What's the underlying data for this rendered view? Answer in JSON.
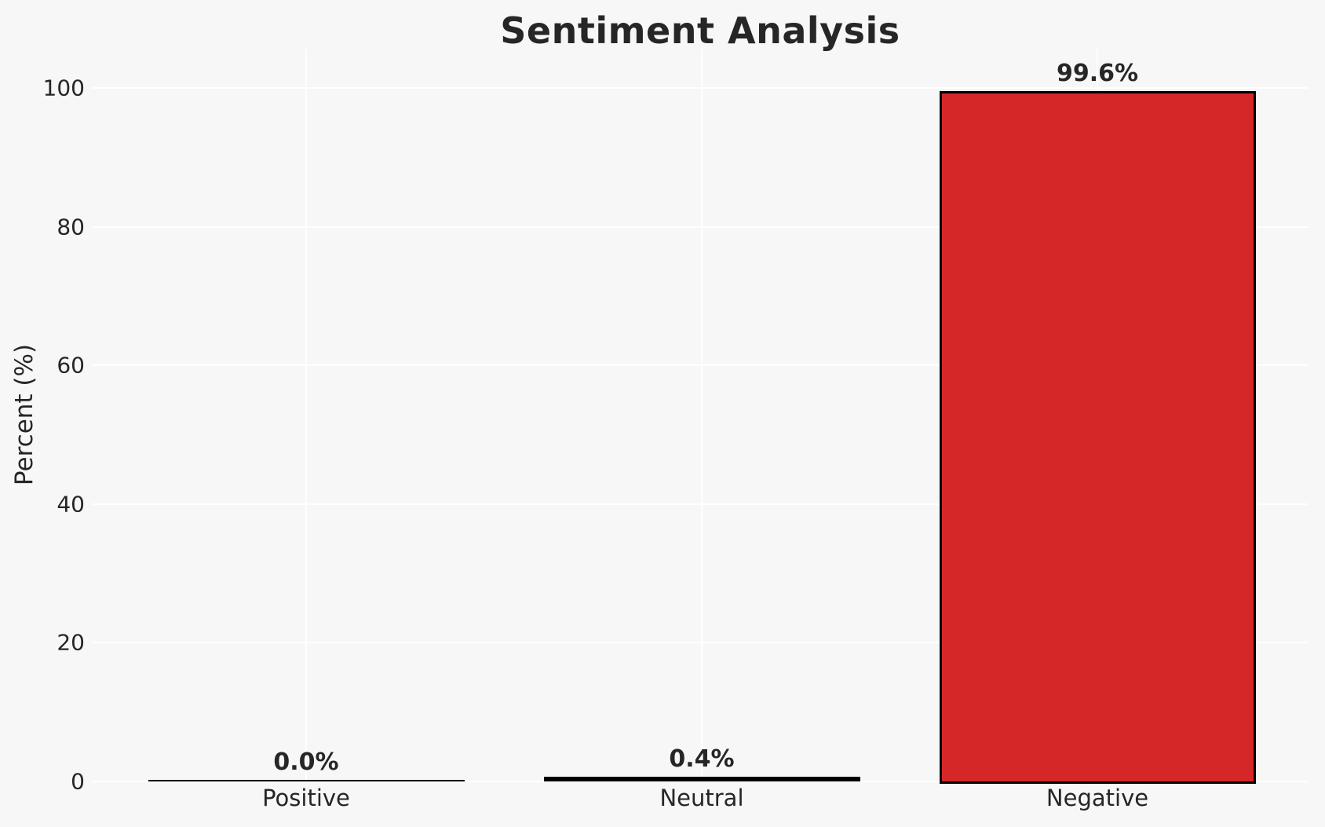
{
  "chart_data": {
    "type": "bar",
    "title": "Sentiment Analysis",
    "ylabel": "Percent (%)",
    "xlabel": "",
    "categories": [
      "Positive",
      "Neutral",
      "Negative"
    ],
    "values": [
      0.0,
      0.4,
      99.6
    ],
    "value_labels": [
      "0.0%",
      "0.4%",
      "99.6%"
    ],
    "yticks": [
      0,
      20,
      40,
      60,
      80,
      100
    ],
    "ytick_labels": [
      "0",
      "20",
      "40",
      "60",
      "80",
      "100"
    ],
    "ylim": [
      0,
      105.6
    ],
    "grid": true,
    "legend": "none",
    "colors": {
      "background": "#f7f7f7",
      "grid": "#ffffff",
      "text": "#262626",
      "bar_fills": [
        "#000000",
        "#000000",
        "#d62728"
      ],
      "bar_edge": "#000000"
    }
  }
}
